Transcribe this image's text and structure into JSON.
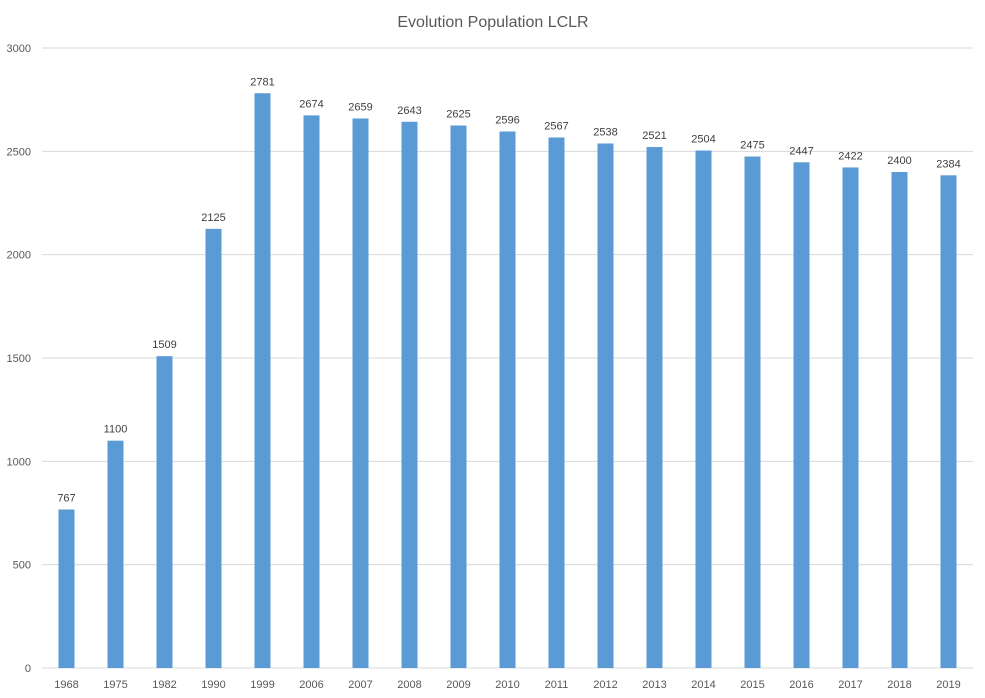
{
  "chart_data": {
    "type": "bar",
    "title": "Evolution Population LCLR",
    "xlabel": "",
    "ylabel": "",
    "categories": [
      "1968",
      "1975",
      "1982",
      "1990",
      "1999",
      "2006",
      "2007",
      "2008",
      "2009",
      "2010",
      "2011",
      "2012",
      "2013",
      "2014",
      "2015",
      "2016",
      "2017",
      "2018",
      "2019"
    ],
    "values": [
      767,
      1100,
      1509,
      2125,
      2781,
      2674,
      2659,
      2643,
      2625,
      2596,
      2567,
      2538,
      2521,
      2504,
      2475,
      2447,
      2422,
      2400,
      2384
    ],
    "ylim": [
      0,
      3000
    ],
    "yticks": [
      0,
      500,
      1000,
      1500,
      2000,
      2500,
      3000
    ],
    "grid": true,
    "legend": "none",
    "data_labels": true,
    "bar_color": "#5b9bd5"
  }
}
